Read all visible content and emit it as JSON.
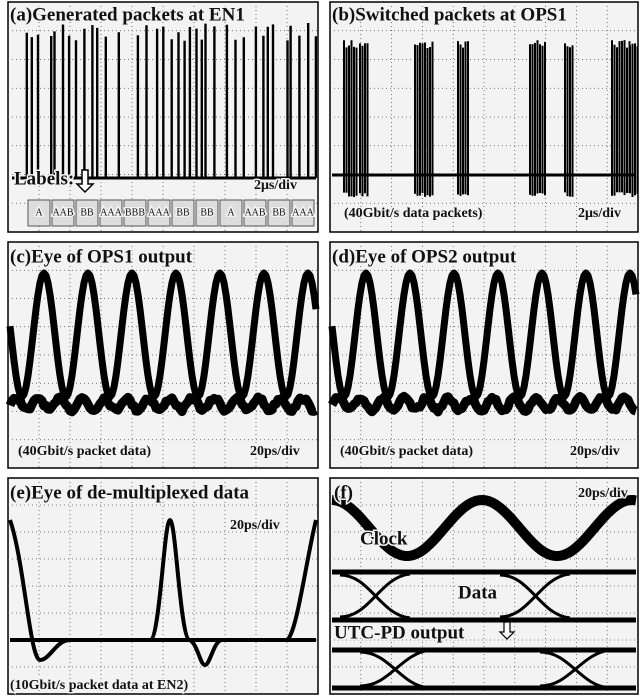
{
  "panels": [
    {
      "title": "(a)Generated packets at EN1",
      "labels_caption": "Labels:",
      "scale": "2μs/div",
      "labels": [
        "A",
        "AAB",
        "BB",
        "AAA",
        "BBB",
        "AAA",
        "BB",
        "BB",
        "A",
        "AAB",
        "BB",
        "AAA"
      ]
    },
    {
      "title": "(b)Switched packets at OPS1",
      "caption": "(40Gbit/s data packets)",
      "scale": "2μs/div"
    },
    {
      "title": "(c)Eye of OPS1 output",
      "caption": "(40Gbit/s packet data)",
      "scale": "20ps/div"
    },
    {
      "title": "(d)Eye of OPS2 output",
      "caption": "(40Gbit/s packet data)",
      "scale": "20ps/div"
    },
    {
      "title": "(e)Eye of de-multiplexed data",
      "caption": "(10Gbit/s packet data at EN2)",
      "scale": "20ps/div"
    },
    {
      "title": "(f)",
      "scale": "20ps/div",
      "clock": "Clock",
      "data": "Data",
      "output": "UTC-PD output"
    }
  ]
}
